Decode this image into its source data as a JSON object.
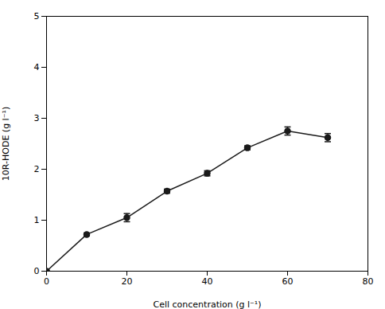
{
  "chart_data": {
    "type": "line",
    "x": [
      0,
      10,
      20,
      30,
      40,
      50,
      60,
      70
    ],
    "values": [
      0.0,
      0.72,
      1.05,
      1.57,
      1.92,
      2.42,
      2.75,
      2.62
    ],
    "yerr": [
      0.02,
      0.03,
      0.08,
      0.04,
      0.05,
      0.04,
      0.08,
      0.08
    ],
    "xlim": [
      0,
      80
    ],
    "ylim": [
      0,
      5
    ],
    "xticks": [
      0,
      20,
      40,
      60,
      80
    ],
    "yticks": [
      0,
      1,
      2,
      3,
      4,
      5
    ],
    "xlabel": "Cell concentration (g l⁻¹)",
    "ylabel": "10R-HODE (g l⁻¹)",
    "color": "#1a1a1a",
    "marker": "o",
    "line_style": "solid",
    "grid": false
  }
}
